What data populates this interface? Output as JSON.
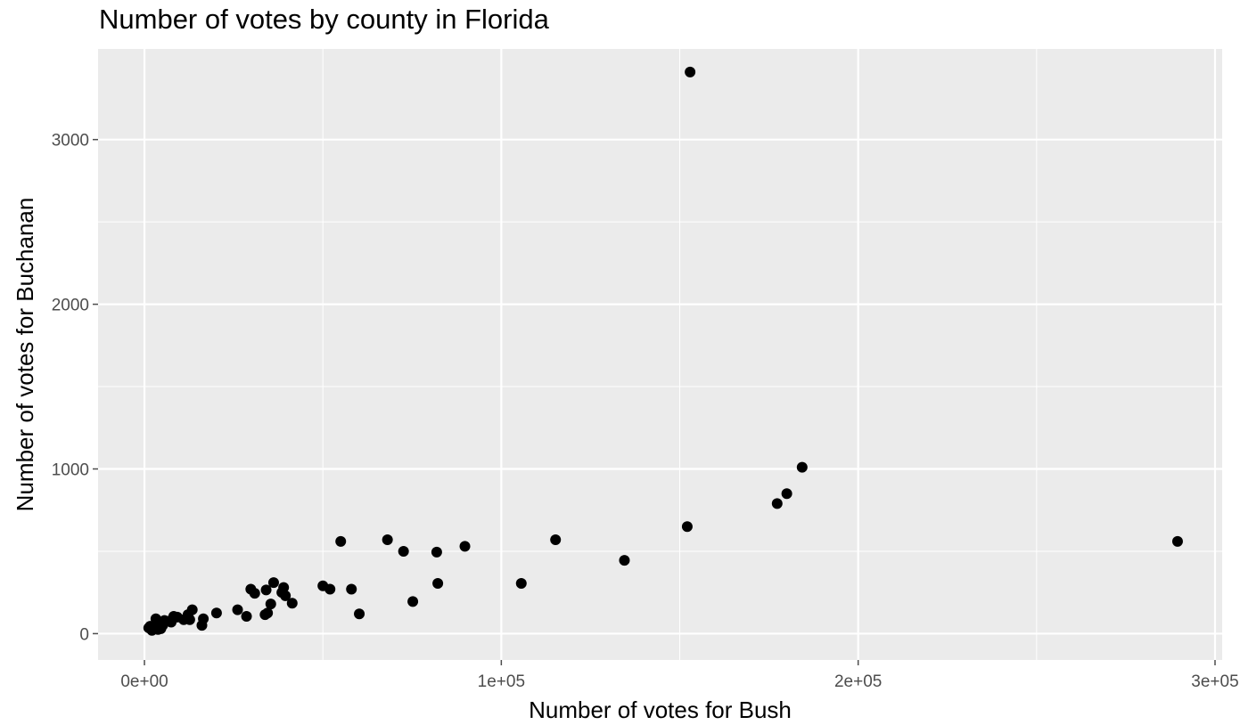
{
  "chart_data": {
    "type": "scatter",
    "title": "Number of votes by county in Florida",
    "xlabel": "Number of votes for Bush",
    "ylabel": "Number of votes for Buchanan",
    "xlim": [
      -13000,
      302000
    ],
    "ylim": [
      -160,
      3550
    ],
    "x_ticks": [
      0,
      100000,
      200000,
      300000
    ],
    "x_tick_labels": [
      "0e+00",
      "1e+05",
      "2e+05",
      "3e+05"
    ],
    "y_ticks": [
      0,
      1000,
      2000,
      3000
    ],
    "y_tick_labels": [
      "0",
      "1000",
      "2000",
      "3000"
    ],
    "grid": true,
    "colors": {
      "panel": "#ebebeb",
      "grid": "#ffffff",
      "point": "#000000",
      "tick": "#4d4d4d"
    },
    "points": [
      [
        152900,
        3410
      ],
      [
        184300,
        1010
      ],
      [
        180000,
        850
      ],
      [
        177300,
        790
      ],
      [
        152100,
        650
      ],
      [
        289500,
        560
      ],
      [
        134500,
        445
      ],
      [
        115200,
        570
      ],
      [
        105600,
        305
      ],
      [
        89800,
        530
      ],
      [
        82200,
        305
      ],
      [
        81900,
        495
      ],
      [
        75200,
        195
      ],
      [
        72600,
        500
      ],
      [
        68100,
        570
      ],
      [
        60200,
        120
      ],
      [
        58000,
        270
      ],
      [
        55000,
        560
      ],
      [
        52000,
        270
      ],
      [
        50000,
        290
      ],
      [
        41400,
        185
      ],
      [
        39500,
        230
      ],
      [
        39000,
        280
      ],
      [
        38500,
        250
      ],
      [
        36200,
        310
      ],
      [
        35400,
        180
      ],
      [
        34500,
        125
      ],
      [
        34100,
        265
      ],
      [
        33800,
        115
      ],
      [
        30900,
        245
      ],
      [
        29800,
        270
      ],
      [
        28600,
        105
      ],
      [
        26100,
        145
      ],
      [
        20200,
        125
      ],
      [
        16500,
        90
      ],
      [
        16100,
        50
      ],
      [
        13400,
        145
      ],
      [
        12700,
        85
      ],
      [
        12200,
        115
      ],
      [
        11000,
        85
      ],
      [
        9200,
        100
      ],
      [
        8200,
        105
      ],
      [
        7500,
        70
      ],
      [
        6800,
        75
      ],
      [
        5600,
        80
      ],
      [
        5100,
        50
      ],
      [
        4600,
        30
      ],
      [
        4300,
        60
      ],
      [
        3200,
        90
      ],
      [
        2800,
        40
      ],
      [
        2100,
        20
      ],
      [
        1600,
        45
      ],
      [
        3800,
        25
      ],
      [
        1200,
        35
      ]
    ]
  }
}
